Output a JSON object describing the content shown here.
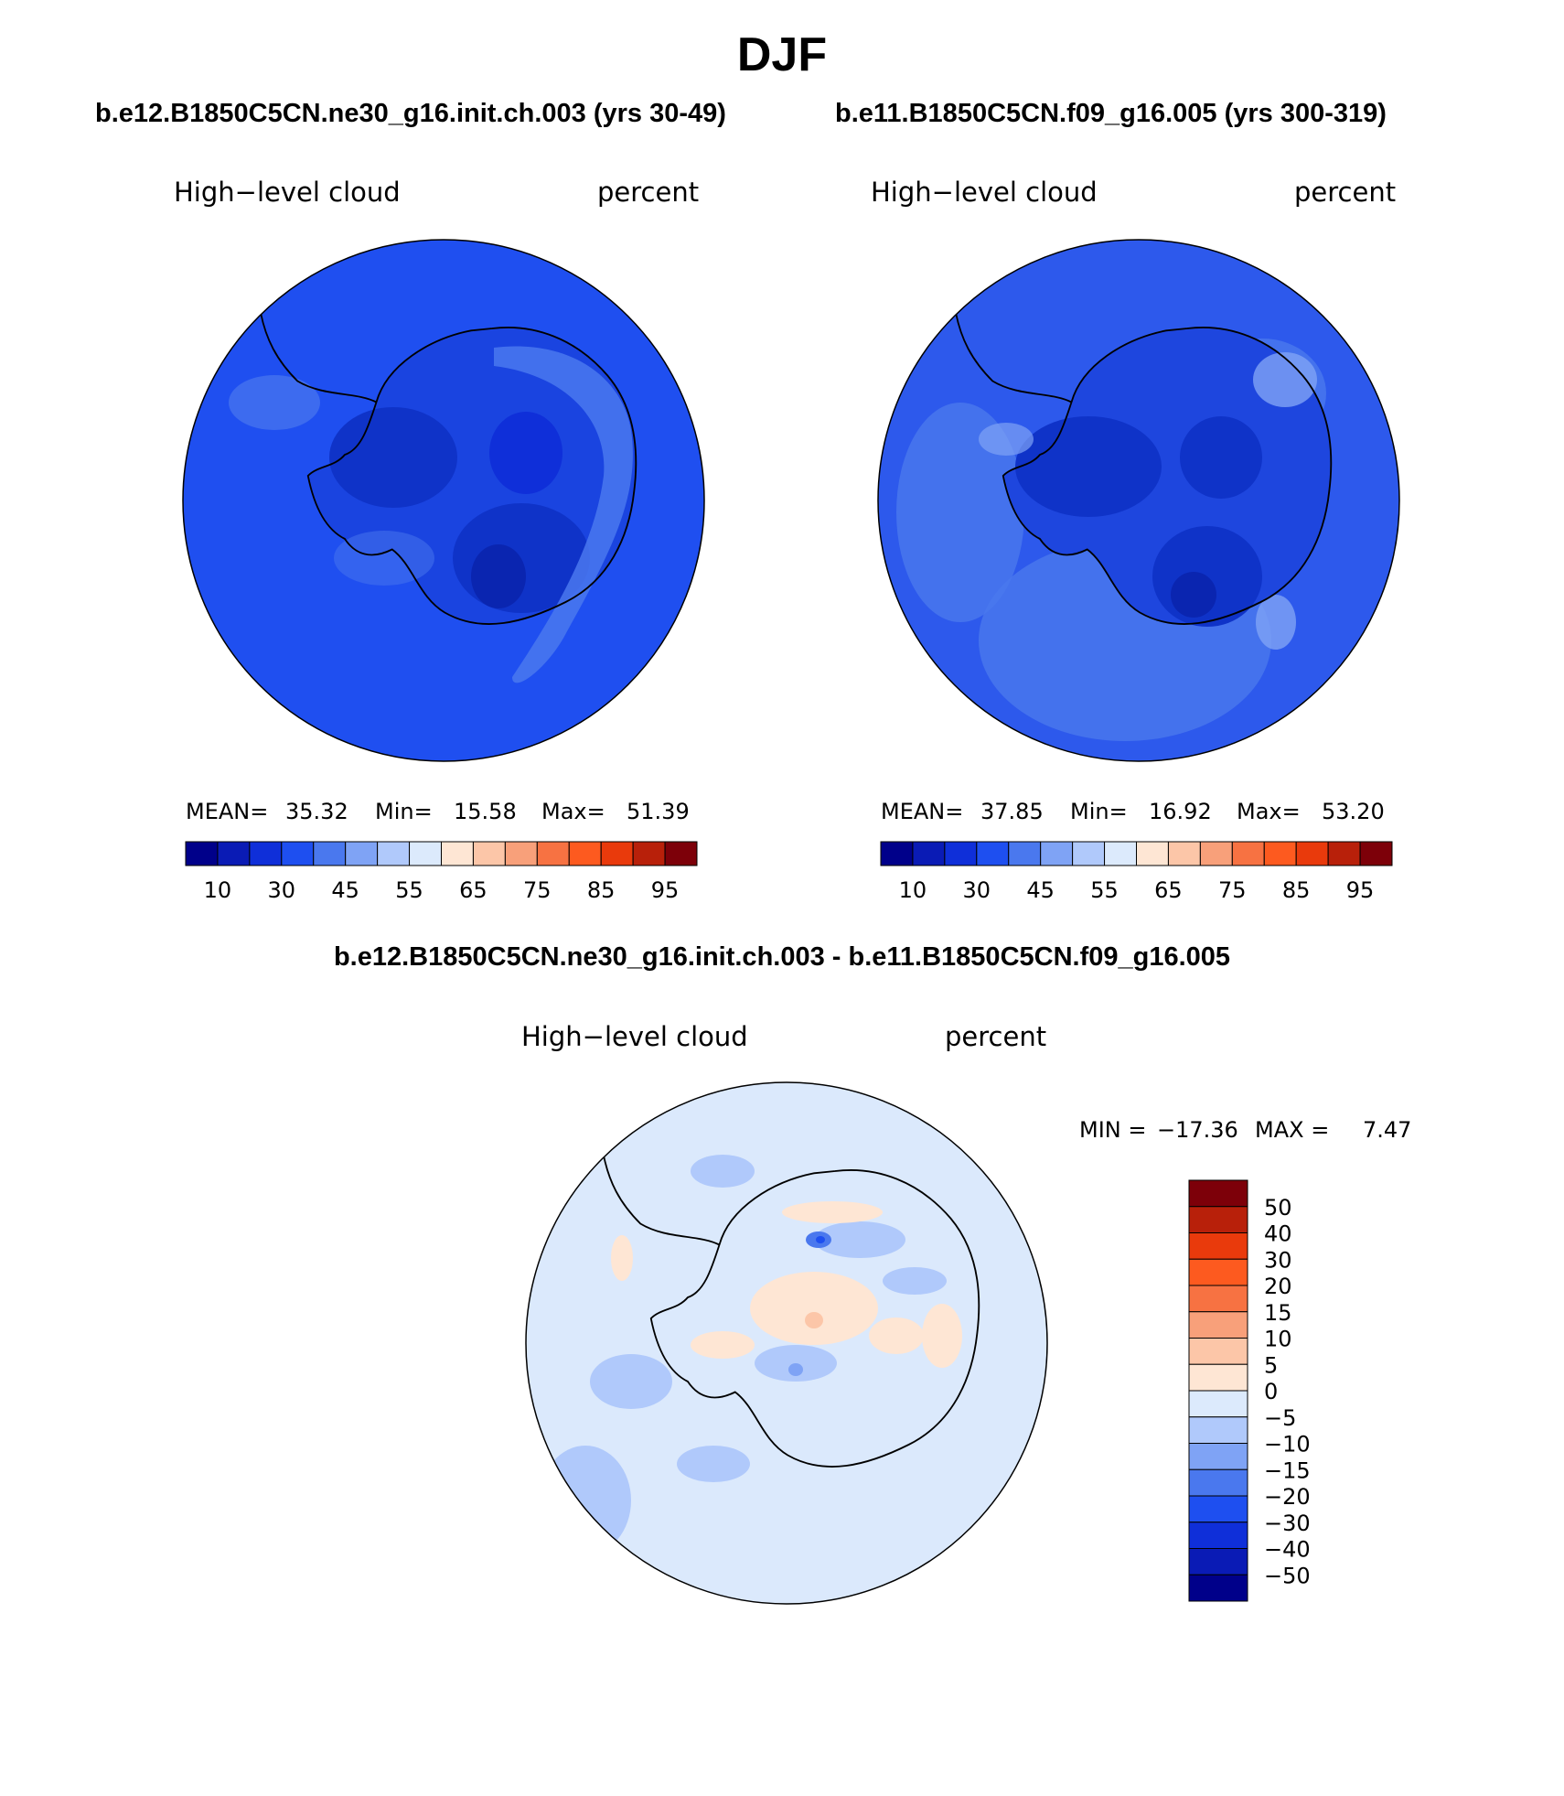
{
  "title": "DJF",
  "panels": [
    {
      "case_title": "b.e12.B1850C5CN.ne30_g16.init.ch.003 (yrs 30-49)",
      "variable": "High−level cloud",
      "units": "percent",
      "stats": {
        "mean_label": "MEAN=",
        "mean": "35.32",
        "min_label": "Min=",
        "min": "15.58",
        "max_label": "Max=",
        "max": "51.39"
      },
      "colorbar_labels": [
        "10",
        "30",
        "45",
        "55",
        "65",
        "75",
        "85",
        "95"
      ]
    },
    {
      "case_title": "b.e11.B1850C5CN.f09_g16.005 (yrs 300-319)",
      "variable": "High−level cloud",
      "units": "percent",
      "stats": {
        "mean_label": "MEAN=",
        "mean": "37.85",
        "min_label": "Min=",
        "min": "16.92",
        "max_label": "Max=",
        "max": "53.20"
      },
      "colorbar_labels": [
        "10",
        "30",
        "45",
        "55",
        "65",
        "75",
        "85",
        "95"
      ]
    }
  ],
  "difference": {
    "title": "b.e12.B1850C5CN.ne30_g16.init.ch.003 - b.e11.B1850C5CN.f09_g16.005",
    "variable": "High−level cloud",
    "units": "percent",
    "minmax": {
      "min_label": "MIN =",
      "min": "−17.36",
      "max_label": "MAX =",
      "max": "7.47"
    },
    "colorbar_labels": [
      "50",
      "40",
      "30",
      "20",
      "15",
      "10",
      "5",
      "0",
      "−5",
      "−10",
      "−15",
      "−20",
      "−30",
      "−40",
      "−50"
    ]
  },
  "colors": {
    "palette": [
      "#00008a",
      "#0a1bb5",
      "#0f2fd9",
      "#1e4ff0",
      "#4a78ee",
      "#7fa3f5",
      "#b0c9fb",
      "#dceafc",
      "#fee6d4",
      "#fcc6a8",
      "#f8a07a",
      "#f77242",
      "#fd5a1f",
      "#e93a0c",
      "#b8200a",
      "#7d0009"
    ],
    "map_left_fill": "#1f4ff0",
    "map_right_fill": "#2d59ec",
    "map_diff_fill": "#dbe9fc"
  }
}
